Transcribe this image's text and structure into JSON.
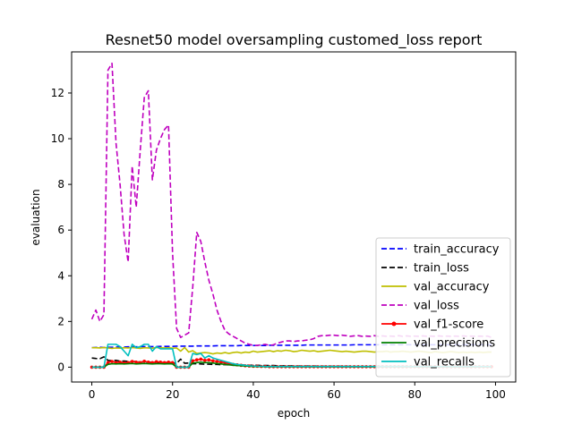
{
  "chart_data": {
    "type": "line",
    "title": "Resnet50 model oversampling customed_loss report",
    "xlabel": "epoch",
    "ylabel": "evaluation",
    "xlim": [
      -5,
      105
    ],
    "ylim": [
      -0.65,
      13.8
    ],
    "xticks": [
      0,
      20,
      40,
      60,
      80,
      100
    ],
    "yticks": [
      0,
      2,
      4,
      6,
      8,
      10,
      12
    ],
    "grid": false,
    "legend_position": "lower-right",
    "x": [
      0,
      1,
      2,
      3,
      4,
      5,
      6,
      7,
      8,
      9,
      10,
      11,
      12,
      13,
      14,
      15,
      16,
      17,
      18,
      19,
      20,
      21,
      22,
      23,
      24,
      25,
      26,
      27,
      28,
      29,
      30,
      31,
      32,
      33,
      34,
      35,
      36,
      37,
      38,
      39,
      40,
      41,
      42,
      43,
      44,
      45,
      46,
      47,
      48,
      49,
      50,
      51,
      52,
      53,
      54,
      55,
      56,
      57,
      58,
      59,
      60,
      61,
      62,
      63,
      64,
      65,
      66,
      67,
      68,
      69,
      70,
      71,
      72,
      73,
      74,
      75,
      76,
      77,
      78,
      79,
      80,
      81,
      82,
      83,
      84,
      85,
      86,
      87,
      88,
      89,
      90,
      91,
      92,
      93,
      94,
      95,
      96,
      97,
      98,
      99
    ],
    "series": [
      {
        "name": "train_accuracy",
        "color": "#0000ff",
        "style": "dashed",
        "marker": "none",
        "values": [
          0.85,
          0.86,
          0.87,
          0.86,
          0.87,
          0.87,
          0.88,
          0.88,
          0.88,
          0.89,
          0.89,
          0.89,
          0.9,
          0.9,
          0.9,
          0.9,
          0.9,
          0.91,
          0.91,
          0.91,
          0.91,
          0.92,
          0.92,
          0.92,
          0.92,
          0.92,
          0.93,
          0.93,
          0.93,
          0.93,
          0.93,
          0.94,
          0.94,
          0.94,
          0.94,
          0.94,
          0.94,
          0.95,
          0.95,
          0.95,
          0.95,
          0.95,
          0.95,
          0.95,
          0.96,
          0.96,
          0.96,
          0.96,
          0.96,
          0.96,
          0.96,
          0.96,
          0.96,
          0.97,
          0.97,
          0.97,
          0.97,
          0.97,
          0.97,
          0.97,
          0.97,
          0.97,
          0.97,
          0.97,
          0.97,
          0.98,
          0.98,
          0.98,
          0.98,
          0.98,
          0.98,
          0.98,
          0.98,
          0.98,
          0.98,
          0.98,
          0.98,
          0.98,
          0.98,
          0.98,
          0.98,
          0.98,
          0.98,
          0.98,
          0.98,
          0.98,
          0.98,
          0.98,
          0.98,
          0.98,
          0.98,
          0.98,
          0.98,
          0.98,
          0.98,
          0.98,
          0.98,
          0.98,
          0.98,
          0.98
        ]
      },
      {
        "name": "train_loss",
        "color": "#000000",
        "style": "dashed",
        "marker": "none",
        "values": [
          0.4,
          0.38,
          0.37,
          0.45,
          0.3,
          0.28,
          0.3,
          0.26,
          0.27,
          0.25,
          0.24,
          0.25,
          0.22,
          0.24,
          0.21,
          0.22,
          0.2,
          0.2,
          0.19,
          0.19,
          0.18,
          0.17,
          0.35,
          0.17,
          0.18,
          0.15,
          0.15,
          0.14,
          0.13,
          0.13,
          0.12,
          0.12,
          0.11,
          0.11,
          0.1,
          0.1,
          0.09,
          0.09,
          0.09,
          0.08,
          0.08,
          0.08,
          0.07,
          0.07,
          0.07,
          0.07,
          0.06,
          0.06,
          0.06,
          0.06,
          0.05,
          0.05,
          0.05,
          0.05,
          0.05,
          0.05,
          0.04,
          0.04,
          0.04,
          0.04,
          0.04,
          0.04,
          0.04,
          0.04,
          0.03,
          0.03,
          0.03,
          0.03,
          0.03,
          0.03,
          0.03,
          0.03,
          0.03,
          0.03,
          0.03,
          0.03,
          0.03,
          0.03,
          0.03,
          0.02,
          0.02,
          0.02,
          0.02,
          0.02,
          0.02,
          0.02,
          0.02,
          0.02,
          0.02,
          0.02,
          0.02,
          0.02,
          0.02,
          0.02,
          0.02,
          0.02,
          0.02,
          0.02,
          0.02,
          0.02
        ]
      },
      {
        "name": "val_accuracy",
        "color": "#bfbf00",
        "style": "solid",
        "marker": "none",
        "values": [
          0.85,
          0.85,
          0.84,
          0.86,
          0.84,
          0.82,
          0.84,
          0.83,
          0.85,
          0.84,
          0.86,
          0.84,
          0.82,
          0.85,
          0.84,
          0.83,
          0.86,
          0.85,
          0.84,
          0.85,
          0.83,
          0.84,
          0.7,
          0.86,
          0.66,
          0.72,
          0.6,
          0.62,
          0.64,
          0.62,
          0.58,
          0.62,
          0.6,
          0.64,
          0.6,
          0.64,
          0.66,
          0.62,
          0.66,
          0.64,
          0.7,
          0.66,
          0.68,
          0.7,
          0.72,
          0.68,
          0.72,
          0.7,
          0.74,
          0.72,
          0.68,
          0.7,
          0.74,
          0.72,
          0.7,
          0.72,
          0.68,
          0.7,
          0.72,
          0.74,
          0.72,
          0.7,
          0.68,
          0.7,
          0.68,
          0.66,
          0.68,
          0.7,
          0.7,
          0.68,
          0.66,
          0.68,
          0.68,
          0.7,
          0.66,
          0.68,
          0.68,
          0.7,
          0.68,
          0.66,
          0.68,
          0.7,
          0.68,
          0.66,
          0.64,
          0.68,
          0.66,
          0.64,
          0.66,
          0.68,
          0.66,
          0.64,
          0.66,
          0.64,
          0.66,
          0.64,
          0.66,
          0.64,
          0.66,
          0.66
        ]
      },
      {
        "name": "val_loss",
        "color": "#bf00bf",
        "style": "dashed",
        "marker": "none",
        "values": [
          2.1,
          2.5,
          2.0,
          2.3,
          13.0,
          13.3,
          9.8,
          8.0,
          5.8,
          4.6,
          8.8,
          7.0,
          9.5,
          11.8,
          12.1,
          8.2,
          9.5,
          10.0,
          10.4,
          10.6,
          5.0,
          1.7,
          1.3,
          1.4,
          1.5,
          3.5,
          5.9,
          5.5,
          4.6,
          3.8,
          3.2,
          2.5,
          2.0,
          1.6,
          1.45,
          1.35,
          1.25,
          1.15,
          1.05,
          1.0,
          0.95,
          0.95,
          0.98,
          1.0,
          0.95,
          0.98,
          1.05,
          1.1,
          1.15,
          1.15,
          1.12,
          1.15,
          1.15,
          1.18,
          1.2,
          1.25,
          1.35,
          1.38,
          1.38,
          1.4,
          1.4,
          1.38,
          1.4,
          1.38,
          1.35,
          1.37,
          1.38,
          1.35,
          1.36,
          1.35,
          1.38,
          1.35,
          1.37,
          1.35,
          1.36,
          1.35,
          1.38,
          1.35,
          1.37,
          1.35,
          1.36,
          1.35,
          1.37,
          1.35,
          1.36,
          1.35,
          1.37,
          1.35,
          1.36,
          1.35,
          1.36,
          1.35,
          1.37,
          1.35,
          1.36,
          1.35,
          1.36,
          1.35,
          1.36,
          1.3
        ]
      },
      {
        "name": "val_f1-score",
        "color": "#ff0000",
        "style": "solid",
        "marker": "dot",
        "values": [
          0.0,
          0.0,
          0.0,
          0.0,
          0.2,
          0.25,
          0.2,
          0.22,
          0.18,
          0.2,
          0.25,
          0.22,
          0.2,
          0.26,
          0.22,
          0.2,
          0.24,
          0.22,
          0.2,
          0.22,
          0.2,
          0.0,
          0.0,
          0.0,
          0.0,
          0.28,
          0.32,
          0.35,
          0.3,
          0.32,
          0.28,
          0.25,
          0.22,
          0.2,
          0.15,
          0.12,
          0.1,
          0.08,
          0.06,
          0.05,
          0.04,
          0.04,
          0.03,
          0.03,
          0.02,
          0.02,
          0.02,
          0.02,
          0.02,
          0.02,
          0.02,
          0.02,
          0.02,
          0.02,
          0.02,
          0.02,
          0.02,
          0.02,
          0.02,
          0.02,
          0.02,
          0.02,
          0.02,
          0.02,
          0.02,
          0.02,
          0.02,
          0.02,
          0.02,
          0.02,
          0.02,
          0.02,
          0.02,
          0.02,
          0.02,
          0.02,
          0.02,
          0.02,
          0.02,
          0.02,
          0.02,
          0.02,
          0.02,
          0.02,
          0.02,
          0.02,
          0.02,
          0.02,
          0.02,
          0.02,
          0.02,
          0.02,
          0.02,
          0.02,
          0.02,
          0.02,
          0.02,
          0.02,
          0.02,
          0.02
        ]
      },
      {
        "name": "val_precisions",
        "color": "#008000",
        "style": "solid",
        "marker": "none",
        "values": [
          0.0,
          0.0,
          0.0,
          0.0,
          0.12,
          0.15,
          0.14,
          0.15,
          0.14,
          0.15,
          0.16,
          0.14,
          0.15,
          0.16,
          0.15,
          0.14,
          0.15,
          0.15,
          0.14,
          0.15,
          0.14,
          0.0,
          0.0,
          0.0,
          0.0,
          0.18,
          0.2,
          0.22,
          0.2,
          0.2,
          0.18,
          0.16,
          0.14,
          0.12,
          0.1,
          0.08,
          0.07,
          0.06,
          0.05,
          0.04,
          0.03,
          0.03,
          0.03,
          0.02,
          0.02,
          0.02,
          0.02,
          0.02,
          0.02,
          0.02,
          0.02,
          0.02,
          0.02,
          0.02,
          0.02,
          0.02,
          0.02,
          0.02,
          0.02,
          0.02,
          0.02,
          0.02,
          0.02,
          0.02,
          0.02,
          0.02,
          0.02,
          0.02,
          0.02,
          0.02,
          0.02,
          0.02,
          0.02,
          0.02,
          0.02,
          0.02,
          0.02,
          0.02,
          0.02,
          0.02,
          0.02,
          0.02,
          0.02,
          0.02,
          0.02,
          0.02,
          0.02,
          0.02,
          0.02,
          0.02,
          0.02,
          0.02,
          0.02,
          0.02,
          0.02,
          0.02,
          0.02,
          0.02,
          0.02,
          0.02
        ]
      },
      {
        "name": "val_recalls",
        "color": "#00bfbf",
        "style": "solid",
        "marker": "none",
        "values": [
          0.0,
          0.0,
          0.0,
          0.0,
          1.0,
          1.0,
          1.0,
          0.9,
          0.7,
          0.5,
          1.0,
          0.85,
          0.9,
          1.0,
          1.0,
          0.7,
          0.9,
          0.8,
          0.8,
          0.8,
          0.8,
          0.0,
          0.0,
          0.0,
          0.0,
          0.6,
          0.55,
          0.6,
          0.4,
          0.5,
          0.4,
          0.35,
          0.3,
          0.25,
          0.2,
          0.15,
          0.12,
          0.1,
          0.08,
          0.06,
          0.05,
          0.04,
          0.04,
          0.03,
          0.03,
          0.03,
          0.03,
          0.03,
          0.03,
          0.03,
          0.03,
          0.03,
          0.03,
          0.03,
          0.03,
          0.03,
          0.03,
          0.03,
          0.03,
          0.03,
          0.03,
          0.03,
          0.03,
          0.03,
          0.03,
          0.03,
          0.03,
          0.03,
          0.03,
          0.03,
          0.03,
          0.03,
          0.03,
          0.03,
          0.03,
          0.03,
          0.03,
          0.03,
          0.03,
          0.03,
          0.03,
          0.03,
          0.03,
          0.03,
          0.03,
          0.03,
          0.03,
          0.03,
          0.03,
          0.03,
          0.03,
          0.03,
          0.03,
          0.03,
          0.03,
          0.03,
          0.03,
          0.03,
          0.03,
          0.03
        ]
      }
    ]
  }
}
